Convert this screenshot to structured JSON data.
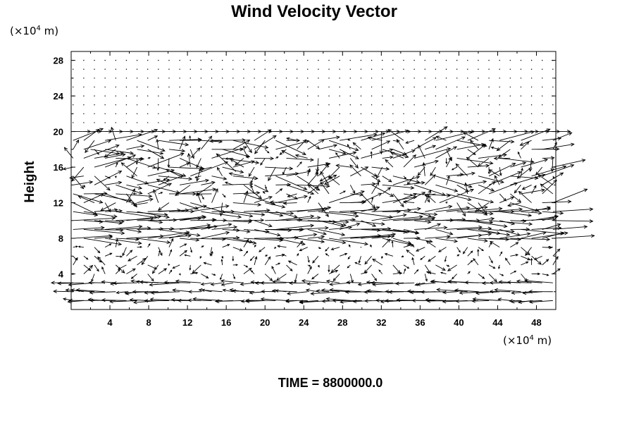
{
  "chart_data": {
    "type": "vector_field",
    "title": "Wind Velocity Vector",
    "ylabel": "Height",
    "x_unit": {
      "prefix": "(×10",
      "exp": "4",
      "suffix": " m)"
    },
    "y_unit": {
      "prefix": "(×10",
      "exp": "4",
      "suffix": " m)"
    },
    "xlim": [
      0,
      50
    ],
    "ylim": [
      0,
      29
    ],
    "x_ticks": [
      4,
      8,
      12,
      16,
      20,
      24,
      28,
      32,
      36,
      40,
      44,
      48
    ],
    "y_ticks": [
      4,
      8,
      12,
      16,
      20,
      24,
      28
    ],
    "grid": false,
    "footer": "TIME = 8800000.0",
    "field": {
      "x_spacing": 1.1,
      "y_spacing": 1.0,
      "upper_level": 20,
      "sample_vectors": [
        {
          "x": 2.0,
          "y": 18.0,
          "u": 3.0,
          "v": -0.5
        },
        {
          "x": 17.0,
          "y": 15.5,
          "u": -2.0,
          "v": 2.0
        },
        {
          "x": 32.0,
          "y": 20.0,
          "u": 0.0,
          "v": -2.5
        },
        {
          "x": 38.0,
          "y": 12.0,
          "u": 3.5,
          "v": 1.5
        },
        {
          "x": 20.0,
          "y": 9.0,
          "u": 4.0,
          "v": 0.0
        },
        {
          "x": 30.0,
          "y": 1.0,
          "u": -3.0,
          "v": 0.0
        }
      ]
    }
  }
}
